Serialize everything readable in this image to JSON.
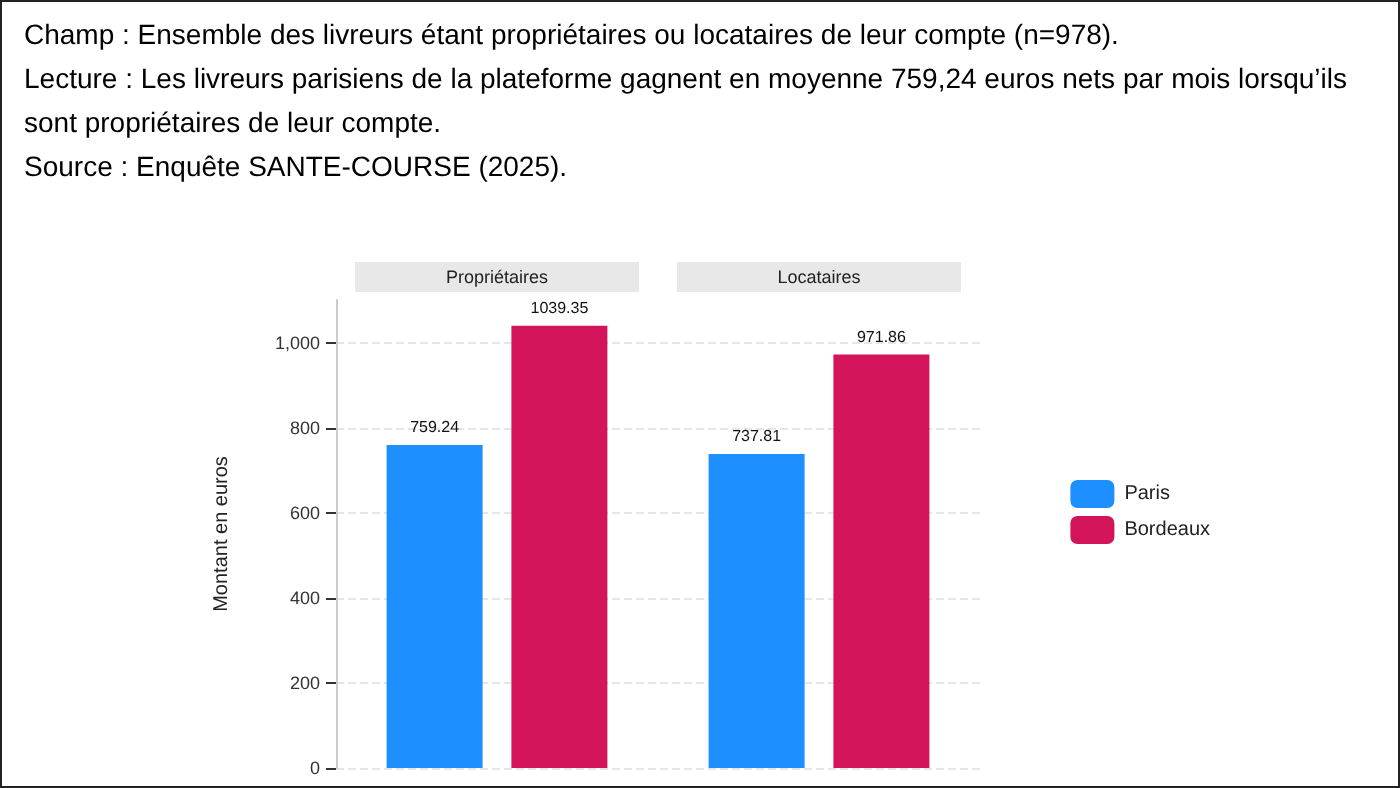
{
  "chart_data": {
    "type": "bar",
    "annotations": [
      "Champ : Ensemble des livreurs étant propriétaires ou locataires de leur compte (n=978).",
      "Lecture : Les livreurs parisiens de la plateforme gagnent en moyenne 759,24 euros nets par mois lorsqu’ils sont propriétaires de leur compte.",
      "Source : Enquête SANTE-COURSE (2025)."
    ],
    "ylabel": "Montant en euros",
    "categories": [
      "Propriétaires",
      "Locataires"
    ],
    "series": [
      {
        "name": "Paris",
        "color": "#1e8fff",
        "values": [
          759.24,
          737.81
        ]
      },
      {
        "name": "Bordeaux",
        "color": "#d4145a",
        "values": [
          1039.35,
          971.86
        ]
      }
    ],
    "ylim": [
      0,
      1100
    ],
    "yticks": [
      0,
      200,
      400,
      600,
      800,
      {
        "value": 1000,
        "label": "1,000"
      }
    ],
    "grid": "y",
    "legend": "right",
    "data_labels": true
  }
}
